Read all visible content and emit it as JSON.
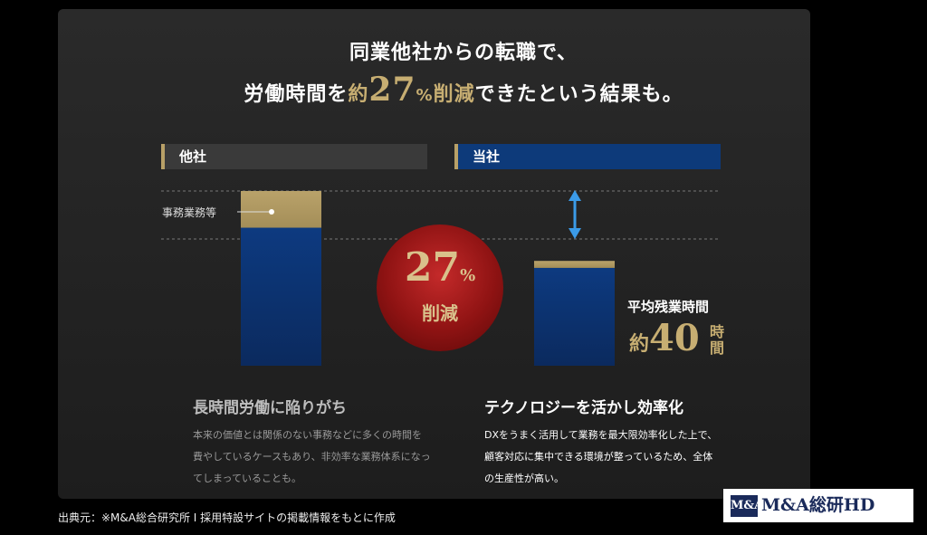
{
  "title": {
    "line1": "同業他社からの転職で、",
    "line2_pre": "労働時間を",
    "line2_approx": "約",
    "line2_num": "27",
    "line2_pct": "%",
    "line2_word": "削減",
    "line2_post": "できたという結果も。"
  },
  "headers": {
    "left": "他社",
    "right": "当社"
  },
  "annotation": "事務業務等",
  "badge": {
    "num": "27",
    "pct": "%",
    "text": "削減"
  },
  "average": {
    "label": "平均残業時間",
    "prefix": "約",
    "value": "40",
    "unit": "時間"
  },
  "left_section": {
    "title": "長時間労働に陥りがち",
    "lines": [
      "本来の価値とは関係のない事務などに多くの時間を",
      "費やしているケースもあり、非効率な業務体系になっ",
      "てしまっていることも。"
    ]
  },
  "right_section": {
    "title": "テクノロジーを活かし効率化",
    "lines": [
      "DXをうまく活用して業務を最大限効率化した上で、",
      "顧客対応に集中できる環境が整っているため、全体",
      "の生産性が高い。"
    ]
  },
  "source": "出典元：※M&A総合研究所 I 採用特設サイトの掲載情報をもとに作成",
  "logo": {
    "mark": "M&A",
    "text": "M&A総研HD"
  },
  "colors": {
    "gold": "#c7ae72",
    "navy_top": "#0d3a80",
    "navy_bottom": "#0b2a5e",
    "red": "#a01818"
  },
  "chart_data": {
    "type": "bar",
    "categories": [
      "他社",
      "当社"
    ],
    "series": [
      {
        "name": "事務業務等",
        "values": [
          0.21,
          0.04
        ]
      },
      {
        "name": "",
        "values": [
          0.79,
          0.56
        ]
      }
    ],
    "reduction_percent": 27,
    "note": "約40時間"
  }
}
